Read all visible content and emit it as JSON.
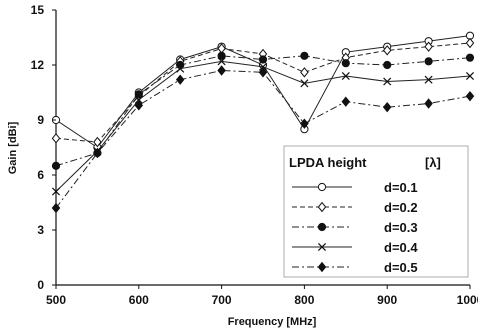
{
  "chart_data": {
    "type": "line",
    "xlabel": "Frequency [MHz]",
    "ylabel": "Gain [dBi]",
    "xlim": [
      500,
      1000
    ],
    "ylim": [
      0,
      15
    ],
    "xticks": [
      500,
      600,
      700,
      800,
      900,
      1000
    ],
    "yticks": [
      0,
      3,
      6,
      9,
      12,
      15
    ],
    "grid": false,
    "legend": {
      "title": "LPDA height",
      "unit": "[λ]",
      "placement": "bottom-right"
    },
    "x": [
      500,
      550,
      600,
      650,
      700,
      750,
      800,
      850,
      900,
      950,
      1000
    ],
    "series": [
      {
        "name": "d=0.1",
        "marker": "open-circle",
        "line": "solid",
        "values": [
          9.0,
          7.5,
          10.5,
          12.3,
          13.0,
          12.0,
          8.5,
          12.7,
          13.0,
          13.3,
          13.6
        ]
      },
      {
        "name": "d=0.2",
        "marker": "open-diamond",
        "line": "dashed",
        "values": [
          8.0,
          7.8,
          10.3,
          12.2,
          12.9,
          12.6,
          11.6,
          12.4,
          12.8,
          13.0,
          13.2
        ]
      },
      {
        "name": "d=0.3",
        "marker": "filled-circle",
        "line": "dash-dot",
        "values": [
          6.5,
          7.2,
          10.4,
          12.0,
          12.5,
          12.3,
          12.5,
          12.1,
          12.0,
          12.2,
          12.4
        ]
      },
      {
        "name": "d=0.4",
        "marker": "cross",
        "line": "solid",
        "values": [
          5.1,
          7.3,
          10.1,
          11.8,
          12.2,
          11.9,
          11.0,
          11.4,
          11.1,
          11.2,
          11.4
        ]
      },
      {
        "name": "d=0.5",
        "marker": "filled-diamond",
        "line": "dash-dot",
        "values": [
          4.2,
          7.2,
          9.8,
          11.2,
          11.7,
          11.6,
          8.8,
          10.0,
          9.7,
          9.9,
          10.3
        ]
      }
    ]
  }
}
